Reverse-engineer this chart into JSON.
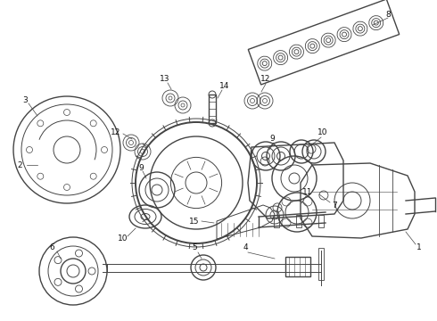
{
  "bg_color": "#ffffff",
  "line_color": "#444444",
  "label_color": "#111111",
  "label_fontsize": 6.5,
  "figw": 4.9,
  "figh": 3.6,
  "dpi": 100
}
